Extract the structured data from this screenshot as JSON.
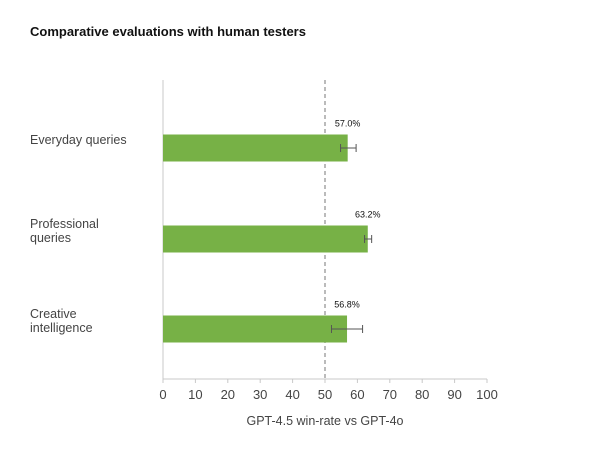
{
  "chart_data": {
    "type": "bar",
    "orientation": "horizontal",
    "title": "Comparative evaluations with human testers",
    "categories": [
      [
        "Everyday queries"
      ],
      [
        "Professional",
        "queries"
      ],
      [
        "Creative",
        "intelligence"
      ]
    ],
    "values": [
      57.0,
      63.2,
      56.8
    ],
    "value_labels": [
      "57.0%",
      "63.2%",
      "56.8%"
    ],
    "error_bars": [
      {
        "low": 54.8,
        "high": 59.6
      },
      {
        "low": 62.2,
        "high": 64.4
      },
      {
        "low": 52.0,
        "high": 61.6
      }
    ],
    "xlabel": "GPT-4.5 win-rate vs GPT-4o",
    "ylabel": "",
    "xlim": [
      0,
      100
    ],
    "xticks": [
      0,
      10,
      20,
      30,
      40,
      50,
      60,
      70,
      80,
      90,
      100
    ],
    "reference_line": 50,
    "bar_color": "#77B146",
    "errorbar_color": "#555555",
    "axis_color": "#c8c8c8",
    "reference_line_color": "#777777"
  }
}
